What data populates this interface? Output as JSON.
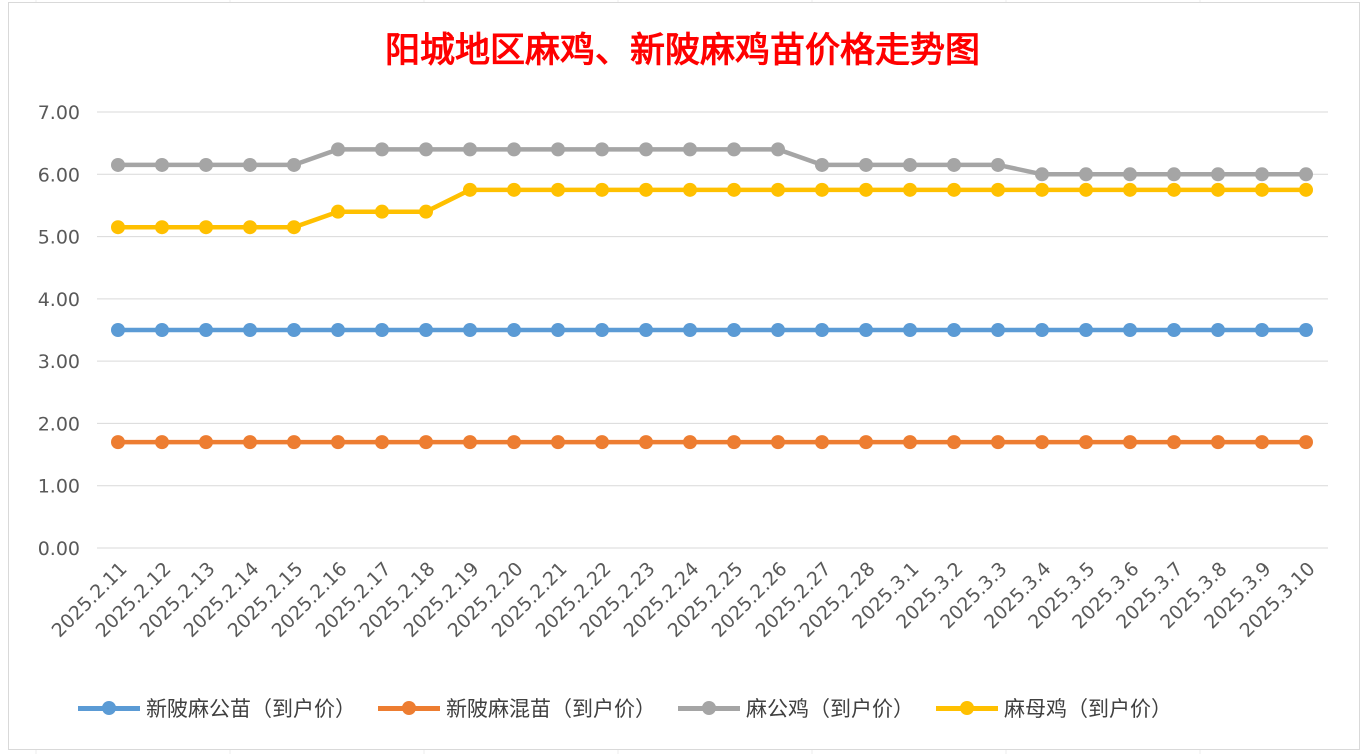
{
  "chart_data": {
    "type": "line",
    "title": "阳城地区麻鸡、新陂麻鸡苗价格走势图",
    "categories": [
      "2025.2.11",
      "2025.2.12",
      "2025.2.13",
      "2025.2.14",
      "2025.2.15",
      "2025.2.16",
      "2025.2.17",
      "2025.2.18",
      "2025.2.19",
      "2025.2.20",
      "2025.2.21",
      "2025.2.22",
      "2025.2.23",
      "2025.2.24",
      "2025.2.25",
      "2025.2.26",
      "2025.2.27",
      "2025.2.28",
      "2025.3.1",
      "2025.3.2",
      "2025.3.3",
      "2025.3.4",
      "2025.3.5",
      "2025.3.6",
      "2025.3.7",
      "2025.3.8",
      "2025.3.9",
      "2025.3.10"
    ],
    "ylim": [
      0,
      7
    ],
    "yticks": [
      "0.00",
      "1.00",
      "2.00",
      "3.00",
      "4.00",
      "5.00",
      "6.00",
      "7.00"
    ],
    "grid": true,
    "legend_position": "bottom",
    "series": [
      {
        "name": "新陂麻公苗（到户价）",
        "color": "#5b9bd5",
        "values": [
          3.5,
          3.5,
          3.5,
          3.5,
          3.5,
          3.5,
          3.5,
          3.5,
          3.5,
          3.5,
          3.5,
          3.5,
          3.5,
          3.5,
          3.5,
          3.5,
          3.5,
          3.5,
          3.5,
          3.5,
          3.5,
          3.5,
          3.5,
          3.5,
          3.5,
          3.5,
          3.5,
          3.5
        ]
      },
      {
        "name": "新陂麻混苗（到户价）",
        "color": "#ed7d31",
        "values": [
          1.7,
          1.7,
          1.7,
          1.7,
          1.7,
          1.7,
          1.7,
          1.7,
          1.7,
          1.7,
          1.7,
          1.7,
          1.7,
          1.7,
          1.7,
          1.7,
          1.7,
          1.7,
          1.7,
          1.7,
          1.7,
          1.7,
          1.7,
          1.7,
          1.7,
          1.7,
          1.7,
          1.7
        ]
      },
      {
        "name": "麻公鸡（到户价）",
        "color": "#a5a5a5",
        "values": [
          6.15,
          6.15,
          6.15,
          6.15,
          6.15,
          6.4,
          6.4,
          6.4,
          6.4,
          6.4,
          6.4,
          6.4,
          6.4,
          6.4,
          6.4,
          6.4,
          6.15,
          6.15,
          6.15,
          6.15,
          6.15,
          6.0,
          6.0,
          6.0,
          6.0,
          6.0,
          6.0,
          6.0
        ]
      },
      {
        "name": "麻母鸡（到户价）",
        "color": "#ffc000",
        "values": [
          5.15,
          5.15,
          5.15,
          5.15,
          5.15,
          5.4,
          5.4,
          5.4,
          5.75,
          5.75,
          5.75,
          5.75,
          5.75,
          5.75,
          5.75,
          5.75,
          5.75,
          5.75,
          5.75,
          5.75,
          5.75,
          5.75,
          5.75,
          5.75,
          5.75,
          5.75,
          5.75,
          5.75
        ]
      }
    ]
  }
}
